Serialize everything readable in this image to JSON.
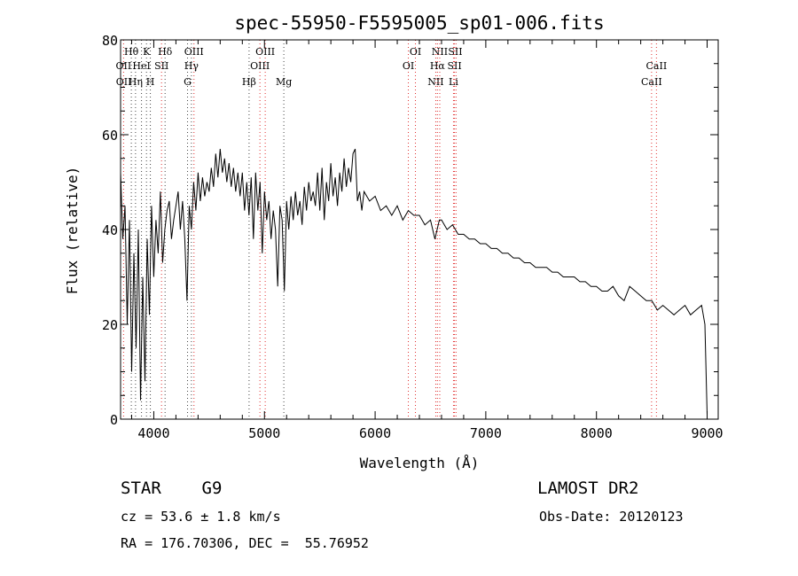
{
  "chart_data": {
    "type": "line",
    "title": "spec-55950-F5595005_sp01-006.fits",
    "xlabel": "Wavelength (Å)",
    "ylabel": "Flux (relative)",
    "xlim": [
      3700,
      9100
    ],
    "ylim": [
      0,
      80
    ],
    "xticks": [
      4000,
      5000,
      6000,
      7000,
      8000,
      9000
    ],
    "yticks": [
      0,
      20,
      40,
      60,
      80
    ],
    "grid": false,
    "series": [
      {
        "x": [
          3700,
          3720,
          3740,
          3760,
          3780,
          3800,
          3820,
          3840,
          3860,
          3880,
          3900,
          3920,
          3940,
          3960,
          3980,
          4000,
          4020,
          4040,
          4060,
          4080,
          4100,
          4120,
          4140,
          4160,
          4180,
          4200,
          4220,
          4240,
          4260,
          4280,
          4300,
          4320,
          4340,
          4360,
          4380,
          4400,
          4420,
          4440,
          4460,
          4480,
          4500,
          4520,
          4540,
          4560,
          4580,
          4600,
          4620,
          4640,
          4660,
          4680,
          4700,
          4720,
          4740,
          4760,
          4780,
          4800,
          4820,
          4840,
          4860,
          4880,
          4900,
          4920,
          4940,
          4960,
          4980,
          5000,
          5020,
          5040,
          5060,
          5080,
          5100,
          5120,
          5140,
          5160,
          5180,
          5200,
          5220,
          5240,
          5260,
          5280,
          5300,
          5320,
          5340,
          5360,
          5380,
          5400,
          5420,
          5440,
          5460,
          5480,
          5500,
          5520,
          5540,
          5560,
          5580,
          5600,
          5620,
          5640,
          5660,
          5680,
          5700,
          5720,
          5740,
          5760,
          5780,
          5800,
          5820,
          5840,
          5860,
          5880,
          5900,
          5950,
          6000,
          6050,
          6100,
          6150,
          6200,
          6250,
          6300,
          6350,
          6400,
          6450,
          6500,
          6540,
          6560,
          6580,
          6600,
          6650,
          6700,
          6750,
          6800,
          6850,
          6900,
          6950,
          7000,
          7050,
          7100,
          7150,
          7200,
          7250,
          7300,
          7350,
          7400,
          7450,
          7500,
          7550,
          7600,
          7650,
          7700,
          7750,
          7800,
          7850,
          7900,
          7950,
          8000,
          8050,
          8100,
          8150,
          8200,
          8250,
          8300,
          8350,
          8400,
          8450,
          8500,
          8550,
          8600,
          8650,
          8700,
          8750,
          8800,
          8850,
          8900,
          8950,
          8980,
          9000
        ],
        "y": [
          52,
          38,
          45,
          20,
          42,
          10,
          35,
          15,
          40,
          4,
          30,
          8,
          38,
          22,
          45,
          30,
          42,
          35,
          48,
          33,
          40,
          44,
          46,
          38,
          42,
          45,
          48,
          40,
          46,
          38,
          25,
          45,
          40,
          50,
          44,
          52,
          46,
          51,
          47,
          50,
          48,
          53,
          49,
          56,
          51,
          57,
          52,
          55,
          50,
          54,
          49,
          53,
          48,
          52,
          47,
          52,
          44,
          50,
          43,
          51,
          38,
          52,
          44,
          50,
          35,
          48,
          42,
          46,
          38,
          44,
          40,
          28,
          45,
          42,
          27,
          46,
          40,
          47,
          42,
          48,
          43,
          46,
          41,
          49,
          44,
          50,
          46,
          48,
          45,
          52,
          44,
          53,
          42,
          50,
          46,
          54,
          47,
          51,
          45,
          52,
          48,
          55,
          49,
          53,
          50,
          56,
          57,
          46,
          48,
          44,
          48,
          46,
          47,
          44,
          45,
          43,
          45,
          42,
          44,
          43,
          43,
          41,
          42,
          38,
          40,
          42,
          42,
          40,
          41,
          39,
          39,
          38,
          38,
          37,
          37,
          36,
          36,
          35,
          35,
          34,
          34,
          33,
          33,
          32,
          32,
          32,
          31,
          31,
          30,
          30,
          30,
          29,
          29,
          28,
          28,
          27,
          27,
          28,
          26,
          25,
          28,
          27,
          26,
          25,
          25,
          23,
          24,
          23,
          22,
          23,
          24,
          22,
          23,
          24,
          20,
          1
        ]
      }
    ],
    "annotations": [
      {
        "label": "Hθ",
        "x": 3797,
        "row": 0
      },
      {
        "label": "OII",
        "x": 3727,
        "row": 1
      },
      {
        "label": "OII",
        "x": 3729,
        "row": 2
      },
      {
        "label": "K",
        "x": 3934,
        "row": 0
      },
      {
        "label": "HeI",
        "x": 3889,
        "row": 1
      },
      {
        "label": "Hη",
        "x": 3835,
        "row": 2
      },
      {
        "label": "H",
        "x": 3969,
        "row": 2
      },
      {
        "label": "Hδ",
        "x": 4102,
        "row": 0
      },
      {
        "label": "SII",
        "x": 4070,
        "row": 1
      },
      {
        "label": "OIII",
        "x": 4363,
        "row": 0
      },
      {
        "label": "Hγ",
        "x": 4340,
        "row": 1
      },
      {
        "label": "G",
        "x": 4305,
        "row": 2
      },
      {
        "label": "OIII",
        "x": 5007,
        "row": 0
      },
      {
        "label": "OIII",
        "x": 4959,
        "row": 1
      },
      {
        "label": "Hβ",
        "x": 4861,
        "row": 2
      },
      {
        "label": "Mg",
        "x": 5175,
        "row": 2
      },
      {
        "label": "OI",
        "x": 6364,
        "row": 0
      },
      {
        "label": "OI",
        "x": 6300,
        "row": 1
      },
      {
        "label": "NII",
        "x": 6584,
        "row": 0
      },
      {
        "label": "SII",
        "x": 6724,
        "row": 0
      },
      {
        "label": "Hα",
        "x": 6563,
        "row": 1
      },
      {
        "label": "SII",
        "x": 6717,
        "row": 1
      },
      {
        "label": "NII",
        "x": 6548,
        "row": 2
      },
      {
        "label": "Li",
        "x": 6708,
        "row": 2
      },
      {
        "label": "CaII",
        "x": 8542,
        "row": 1
      },
      {
        "label": "CaII",
        "x": 8498,
        "row": 2
      }
    ],
    "line_markers": {
      "black": [
        3797,
        3835,
        3889,
        3934,
        3969,
        4102,
        4305,
        4340,
        4861,
        5175
      ],
      "red": [
        3727,
        4070,
        4363,
        4959,
        5007,
        6300,
        6364,
        6548,
        6563,
        6584,
        6708,
        6717,
        6731,
        8498,
        8542
      ]
    }
  },
  "info": {
    "class_text": "STAR    G9",
    "survey_text": "LAMOST DR2",
    "cz_text": "cz = 53.6 ± 1.8 km/s",
    "obs_text": "Obs-Date: 20120123",
    "radec_text": "RA = 176.70306, DEC =  55.76952"
  }
}
